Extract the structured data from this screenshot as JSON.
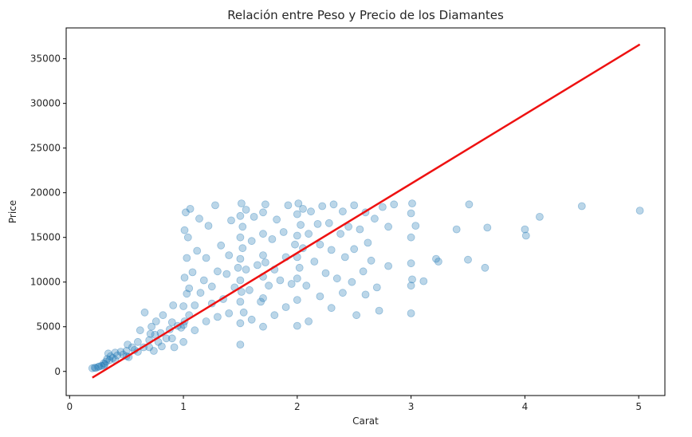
{
  "chart_data": {
    "type": "scatter",
    "title": "Relación entre Peso y Precio de los Diamantes",
    "xlabel": "Carat",
    "ylabel": "Price",
    "xlim": [
      -0.03,
      5.23
    ],
    "ylim": [
      -2700,
      38450
    ],
    "x_ticks": [
      0,
      1,
      2,
      3,
      4,
      5
    ],
    "y_ticks": [
      0,
      5000,
      10000,
      15000,
      20000,
      25000,
      30000,
      35000
    ],
    "grid": false,
    "point_color": "#1f77b4",
    "point_alpha": 0.3,
    "line_color": "#ee1111",
    "regression_line": {
      "x": [
        0.2,
        5.01
      ],
      "y": [
        -700,
        36600
      ]
    },
    "points": [
      [
        0.2,
        350
      ],
      [
        0.22,
        420
      ],
      [
        0.23,
        380
      ],
      [
        0.25,
        500
      ],
      [
        0.26,
        560
      ],
      [
        0.28,
        620
      ],
      [
        0.3,
        650
      ],
      [
        0.3,
        900
      ],
      [
        0.31,
        800
      ],
      [
        0.32,
        1100
      ],
      [
        0.33,
        1400
      ],
      [
        0.34,
        2000
      ],
      [
        0.35,
        1250
      ],
      [
        0.36,
        1700
      ],
      [
        0.38,
        1500
      ],
      [
        0.4,
        1300
      ],
      [
        0.4,
        2100
      ],
      [
        0.42,
        1800
      ],
      [
        0.45,
        2200
      ],
      [
        0.47,
        1900
      ],
      [
        0.5,
        1700
      ],
      [
        0.5,
        2300
      ],
      [
        0.51,
        3000
      ],
      [
        0.52,
        1600
      ],
      [
        0.55,
        2700
      ],
      [
        0.57,
        2400
      ],
      [
        0.6,
        2200
      ],
      [
        0.6,
        3300
      ],
      [
        0.62,
        4600
      ],
      [
        0.65,
        2700
      ],
      [
        0.66,
        6600
      ],
      [
        0.7,
        2700
      ],
      [
        0.7,
        3500
      ],
      [
        0.71,
        4200
      ],
      [
        0.72,
        5000
      ],
      [
        0.74,
        2300
      ],
      [
        0.75,
        4100
      ],
      [
        0.76,
        5600
      ],
      [
        0.78,
        3300
      ],
      [
        0.8,
        4300
      ],
      [
        0.81,
        2800
      ],
      [
        0.82,
        6300
      ],
      [
        0.85,
        3700
      ],
      [
        0.88,
        4700
      ],
      [
        0.9,
        3700
      ],
      [
        0.9,
        5500
      ],
      [
        0.91,
        7400
      ],
      [
        0.92,
        2700
      ],
      [
        0.95,
        5100
      ],
      [
        0.98,
        4900
      ],
      [
        1.0,
        3300
      ],
      [
        1.0,
        5200
      ],
      [
        1.0,
        7300
      ],
      [
        1.01,
        5600
      ],
      [
        1.01,
        10500
      ],
      [
        1.01,
        15800
      ],
      [
        1.02,
        17800
      ],
      [
        1.03,
        8700
      ],
      [
        1.03,
        12700
      ],
      [
        1.04,
        15000
      ],
      [
        1.05,
        6300
      ],
      [
        1.05,
        9300
      ],
      [
        1.06,
        18200
      ],
      [
        1.08,
        11100
      ],
      [
        1.1,
        4600
      ],
      [
        1.1,
        7400
      ],
      [
        1.12,
        13500
      ],
      [
        1.14,
        17100
      ],
      [
        1.15,
        8800
      ],
      [
        1.18,
        10200
      ],
      [
        1.2,
        5600
      ],
      [
        1.2,
        12700
      ],
      [
        1.22,
        16300
      ],
      [
        1.25,
        7600
      ],
      [
        1.25,
        9500
      ],
      [
        1.28,
        18600
      ],
      [
        1.3,
        6100
      ],
      [
        1.3,
        11200
      ],
      [
        1.33,
        14100
      ],
      [
        1.35,
        8100
      ],
      [
        1.38,
        10900
      ],
      [
        1.4,
        6500
      ],
      [
        1.4,
        13000
      ],
      [
        1.42,
        16900
      ],
      [
        1.45,
        9400
      ],
      [
        1.48,
        11600
      ],
      [
        1.5,
        3000
      ],
      [
        1.5,
        5400
      ],
      [
        1.5,
        7800
      ],
      [
        1.5,
        10200
      ],
      [
        1.5,
        12600
      ],
      [
        1.5,
        15000
      ],
      [
        1.5,
        17400
      ],
      [
        1.51,
        18800
      ],
      [
        1.51,
        8900
      ],
      [
        1.52,
        13800
      ],
      [
        1.52,
        16200
      ],
      [
        1.53,
        6600
      ],
      [
        1.55,
        11400
      ],
      [
        1.55,
        18100
      ],
      [
        1.58,
        9100
      ],
      [
        1.6,
        14600
      ],
      [
        1.6,
        5800
      ],
      [
        1.62,
        17300
      ],
      [
        1.65,
        11900
      ],
      [
        1.68,
        7800
      ],
      [
        1.7,
        5000
      ],
      [
        1.7,
        8200
      ],
      [
        1.7,
        10600
      ],
      [
        1.7,
        13000
      ],
      [
        1.7,
        15400
      ],
      [
        1.7,
        17800
      ],
      [
        1.72,
        18700
      ],
      [
        1.72,
        12200
      ],
      [
        1.75,
        9600
      ],
      [
        1.78,
        14800
      ],
      [
        1.8,
        6300
      ],
      [
        1.8,
        11400
      ],
      [
        1.82,
        17000
      ],
      [
        1.85,
        10200
      ],
      [
        1.88,
        15600
      ],
      [
        1.9,
        7200
      ],
      [
        1.9,
        12800
      ],
      [
        1.92,
        18600
      ],
      [
        1.95,
        9800
      ],
      [
        1.98,
        14200
      ],
      [
        2.0,
        5100
      ],
      [
        2.0,
        8000
      ],
      [
        2.0,
        10400
      ],
      [
        2.0,
        12800
      ],
      [
        2.0,
        15200
      ],
      [
        2.0,
        17600
      ],
      [
        2.01,
        18800
      ],
      [
        2.02,
        11600
      ],
      [
        2.03,
        16400
      ],
      [
        2.05,
        13800
      ],
      [
        2.05,
        18200
      ],
      [
        2.08,
        9600
      ],
      [
        2.1,
        15400
      ],
      [
        2.1,
        5600
      ],
      [
        2.12,
        17900
      ],
      [
        2.15,
        12300
      ],
      [
        2.18,
        16500
      ],
      [
        2.2,
        8400
      ],
      [
        2.2,
        14200
      ],
      [
        2.22,
        18500
      ],
      [
        2.25,
        11000
      ],
      [
        2.28,
        16600
      ],
      [
        2.3,
        7100
      ],
      [
        2.3,
        13600
      ],
      [
        2.32,
        18700
      ],
      [
        2.35,
        10400
      ],
      [
        2.38,
        15400
      ],
      [
        2.4,
        8800
      ],
      [
        2.4,
        17900
      ],
      [
        2.42,
        12800
      ],
      [
        2.45,
        16200
      ],
      [
        2.48,
        10000
      ],
      [
        2.5,
        13700
      ],
      [
        2.5,
        18600
      ],
      [
        2.52,
        6300
      ],
      [
        2.55,
        15900
      ],
      [
        2.58,
        11200
      ],
      [
        2.6,
        17800
      ],
      [
        2.6,
        8600
      ],
      [
        2.62,
        14400
      ],
      [
        2.65,
        12400
      ],
      [
        2.68,
        17100
      ],
      [
        2.7,
        9400
      ],
      [
        2.72,
        6800
      ],
      [
        2.75,
        18400
      ],
      [
        2.8,
        11800
      ],
      [
        2.8,
        16200
      ],
      [
        2.85,
        18700
      ],
      [
        3.0,
        6500
      ],
      [
        3.0,
        9600
      ],
      [
        3.0,
        12100
      ],
      [
        3.0,
        15000
      ],
      [
        3.0,
        17700
      ],
      [
        3.01,
        18800
      ],
      [
        3.01,
        10300
      ],
      [
        3.04,
        16300
      ],
      [
        3.11,
        10100
      ],
      [
        3.22,
        12600
      ],
      [
        3.24,
        12300
      ],
      [
        3.4,
        15900
      ],
      [
        3.5,
        12500
      ],
      [
        3.51,
        18700
      ],
      [
        3.65,
        11600
      ],
      [
        3.67,
        16100
      ],
      [
        4.0,
        15900
      ],
      [
        4.01,
        15200
      ],
      [
        4.13,
        17300
      ],
      [
        4.5,
        18500
      ],
      [
        5.01,
        18000
      ]
    ]
  }
}
